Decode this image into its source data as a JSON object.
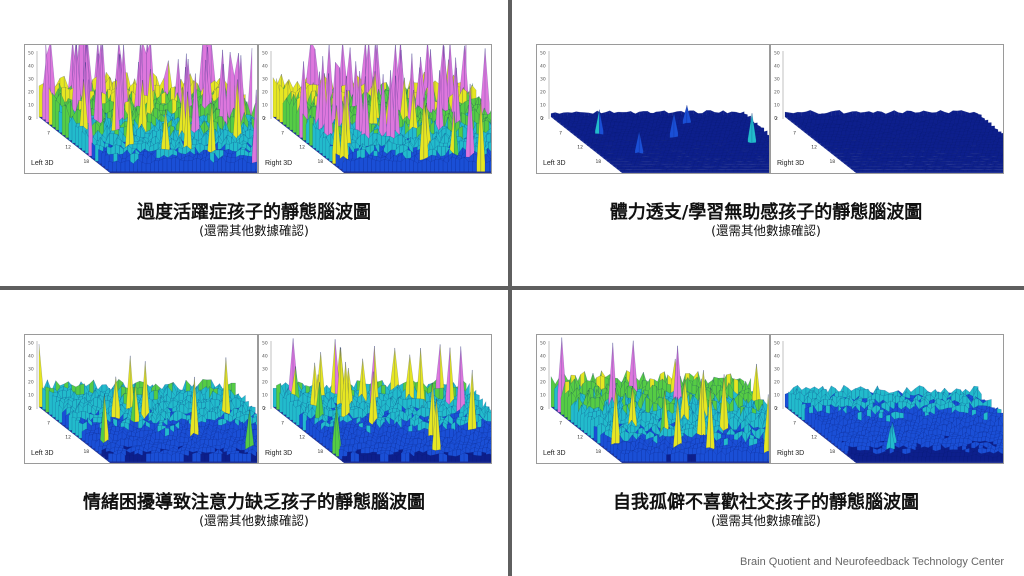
{
  "panels": [
    {
      "title": "過度活躍症孩子的靜態腦波圖",
      "subtitle": "(還需其他數據確認)",
      "left_label": "Left 3D",
      "right_label": "Right 3D",
      "left_intensity": "very-high",
      "right_intensity": "very-high"
    },
    {
      "title": "體力透支/學習無助感孩子的靜態腦波圖",
      "subtitle": "(還需其他數據確認)",
      "left_label": "Left 3D",
      "right_label": "Right 3D",
      "left_intensity": "low",
      "right_intensity": "low"
    },
    {
      "title": "情緒困擾導致注意力缺乏孩子的靜態腦波圖",
      "subtitle": "(還需其他數據確認)",
      "left_label": "Left 3D",
      "right_label": "Right 3D",
      "left_intensity": "medium-peaks",
      "right_intensity": "medium-peaks"
    },
    {
      "title": "自我孤僻不喜歡社交孩子的靜態腦波圖",
      "subtitle": "(還需其他數據確認)",
      "left_label": "Left 3D",
      "right_label": "Right 3D",
      "left_intensity": "high",
      "right_intensity": "medium"
    }
  ],
  "axis": {
    "z_ticks": [
      "50",
      "40",
      "30",
      "20",
      "10",
      "0"
    ],
    "y_ticks": [
      "2",
      "7",
      "12",
      "18",
      "28"
    ],
    "x_ticks": [
      "60 Sec",
      "30 Sec"
    ]
  },
  "colors": {
    "pink": "#dd77dd",
    "yellow": "#e6e622",
    "green": "#55cc44",
    "cyan": "#22bbcc",
    "blue": "#1a4fd6",
    "navy": "#0d1f8c"
  },
  "footer": "Brain Quotient and Neurofeedback Technology Center"
}
